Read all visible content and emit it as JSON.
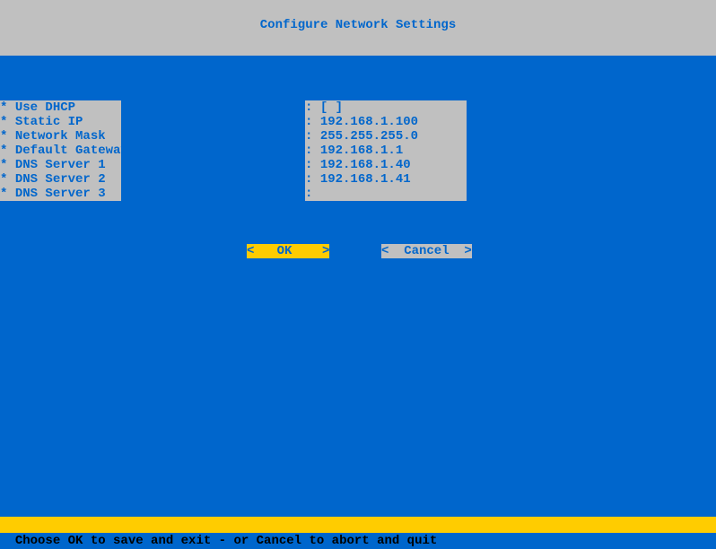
{
  "colors": {
    "header_bg": "#c0c0c0",
    "main_bg": "#0066cc",
    "text_accent": "#0066cc",
    "highlight_bg": "#ffcc00",
    "status_text": "#000000"
  },
  "header": {
    "title": "Configure Network Settings"
  },
  "fields": {
    "prefix": "* ",
    "separator": ": ",
    "items": [
      {
        "label": "Use DHCP",
        "value": "[ ]"
      },
      {
        "label": "Static IP",
        "value": "192.168.1.100"
      },
      {
        "label": "Network Mask",
        "value": "255.255.255.0"
      },
      {
        "label": "Default Gateway",
        "value": "192.168.1.1"
      },
      {
        "label": "DNS Server 1",
        "value": "192.168.1.40"
      },
      {
        "label": "DNS Server 2",
        "value": "192.168.1.41"
      },
      {
        "label": "DNS Server 3",
        "value": ""
      }
    ]
  },
  "buttons": {
    "ok": "<   OK    >",
    "cancel": "<  Cancel  >"
  },
  "status": {
    "text": "Choose OK to save and exit - or Cancel to abort and quit"
  }
}
